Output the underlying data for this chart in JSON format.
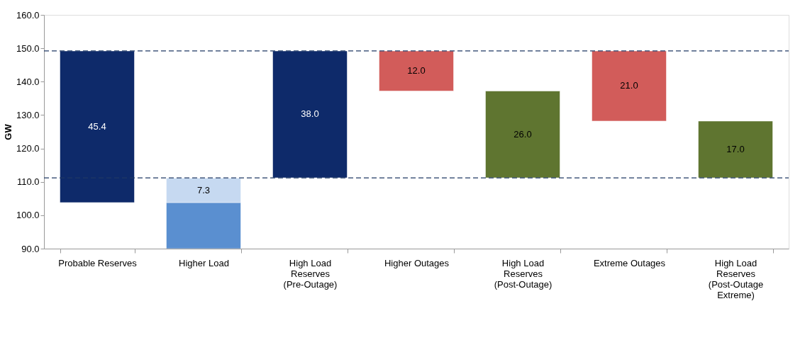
{
  "chart_data": {
    "type": "bar",
    "ylabel": "GW",
    "categories": [
      "Probable Reserves",
      "Higher Load",
      "High Load\nReserves\n(Pre-Outage)",
      "Higher Outages",
      "High Load\nReserves\n(Post-Outage)",
      "Extreme Outages",
      "High Load\nReserves\n(Post-Outage\nExtreme)"
    ],
    "series": [
      {
        "colors": [
          "#0e2a6a",
          "#5a8fd0",
          "#0e2a6a",
          "#d25c5a",
          "#5f7530",
          "#d25c5a",
          "#5f7530"
        ],
        "base": [
          103.8,
          90.0,
          111.2,
          137.2,
          111.2,
          128.2,
          111.2
        ],
        "values": [
          45.4,
          13.8,
          38.0,
          12.0,
          26.0,
          21.0,
          17.0
        ],
        "value_labels": [
          "45.4",
          null,
          "38.0",
          "12.0",
          "26.0",
          "21.0",
          "17.0"
        ]
      },
      {
        "colors": [
          null,
          "#c6d9f1",
          null,
          null,
          null,
          null,
          null
        ],
        "base": [
          null,
          103.8,
          null,
          null,
          null,
          null,
          null
        ],
        "values": [
          null,
          7.3,
          null,
          null,
          null,
          null,
          null
        ],
        "value_labels": [
          null,
          "7.3",
          null,
          null,
          null,
          null,
          null
        ]
      }
    ],
    "ylim": [
      90.0,
      160.0
    ],
    "yticks": [
      {
        "value": 90,
        "label": "90.0"
      },
      {
        "value": 100,
        "label": "100.0"
      },
      {
        "value": 110,
        "label": "110.0"
      },
      {
        "value": 120,
        "label": "120.0"
      },
      {
        "value": 130,
        "label": "130.0"
      },
      {
        "value": 140,
        "label": "140.0"
      },
      {
        "value": 150,
        "label": "150.0"
      },
      {
        "value": 160,
        "label": "160.0"
      }
    ],
    "ref_lines": [
      {
        "axis": "y",
        "value": 149.2,
        "color": "#1f3864",
        "line_style": "dashed"
      },
      {
        "axis": "y",
        "value": 111.2,
        "color": "#1f3864",
        "line_style": "dashed"
      }
    ],
    "grid": false,
    "legend": false
  }
}
